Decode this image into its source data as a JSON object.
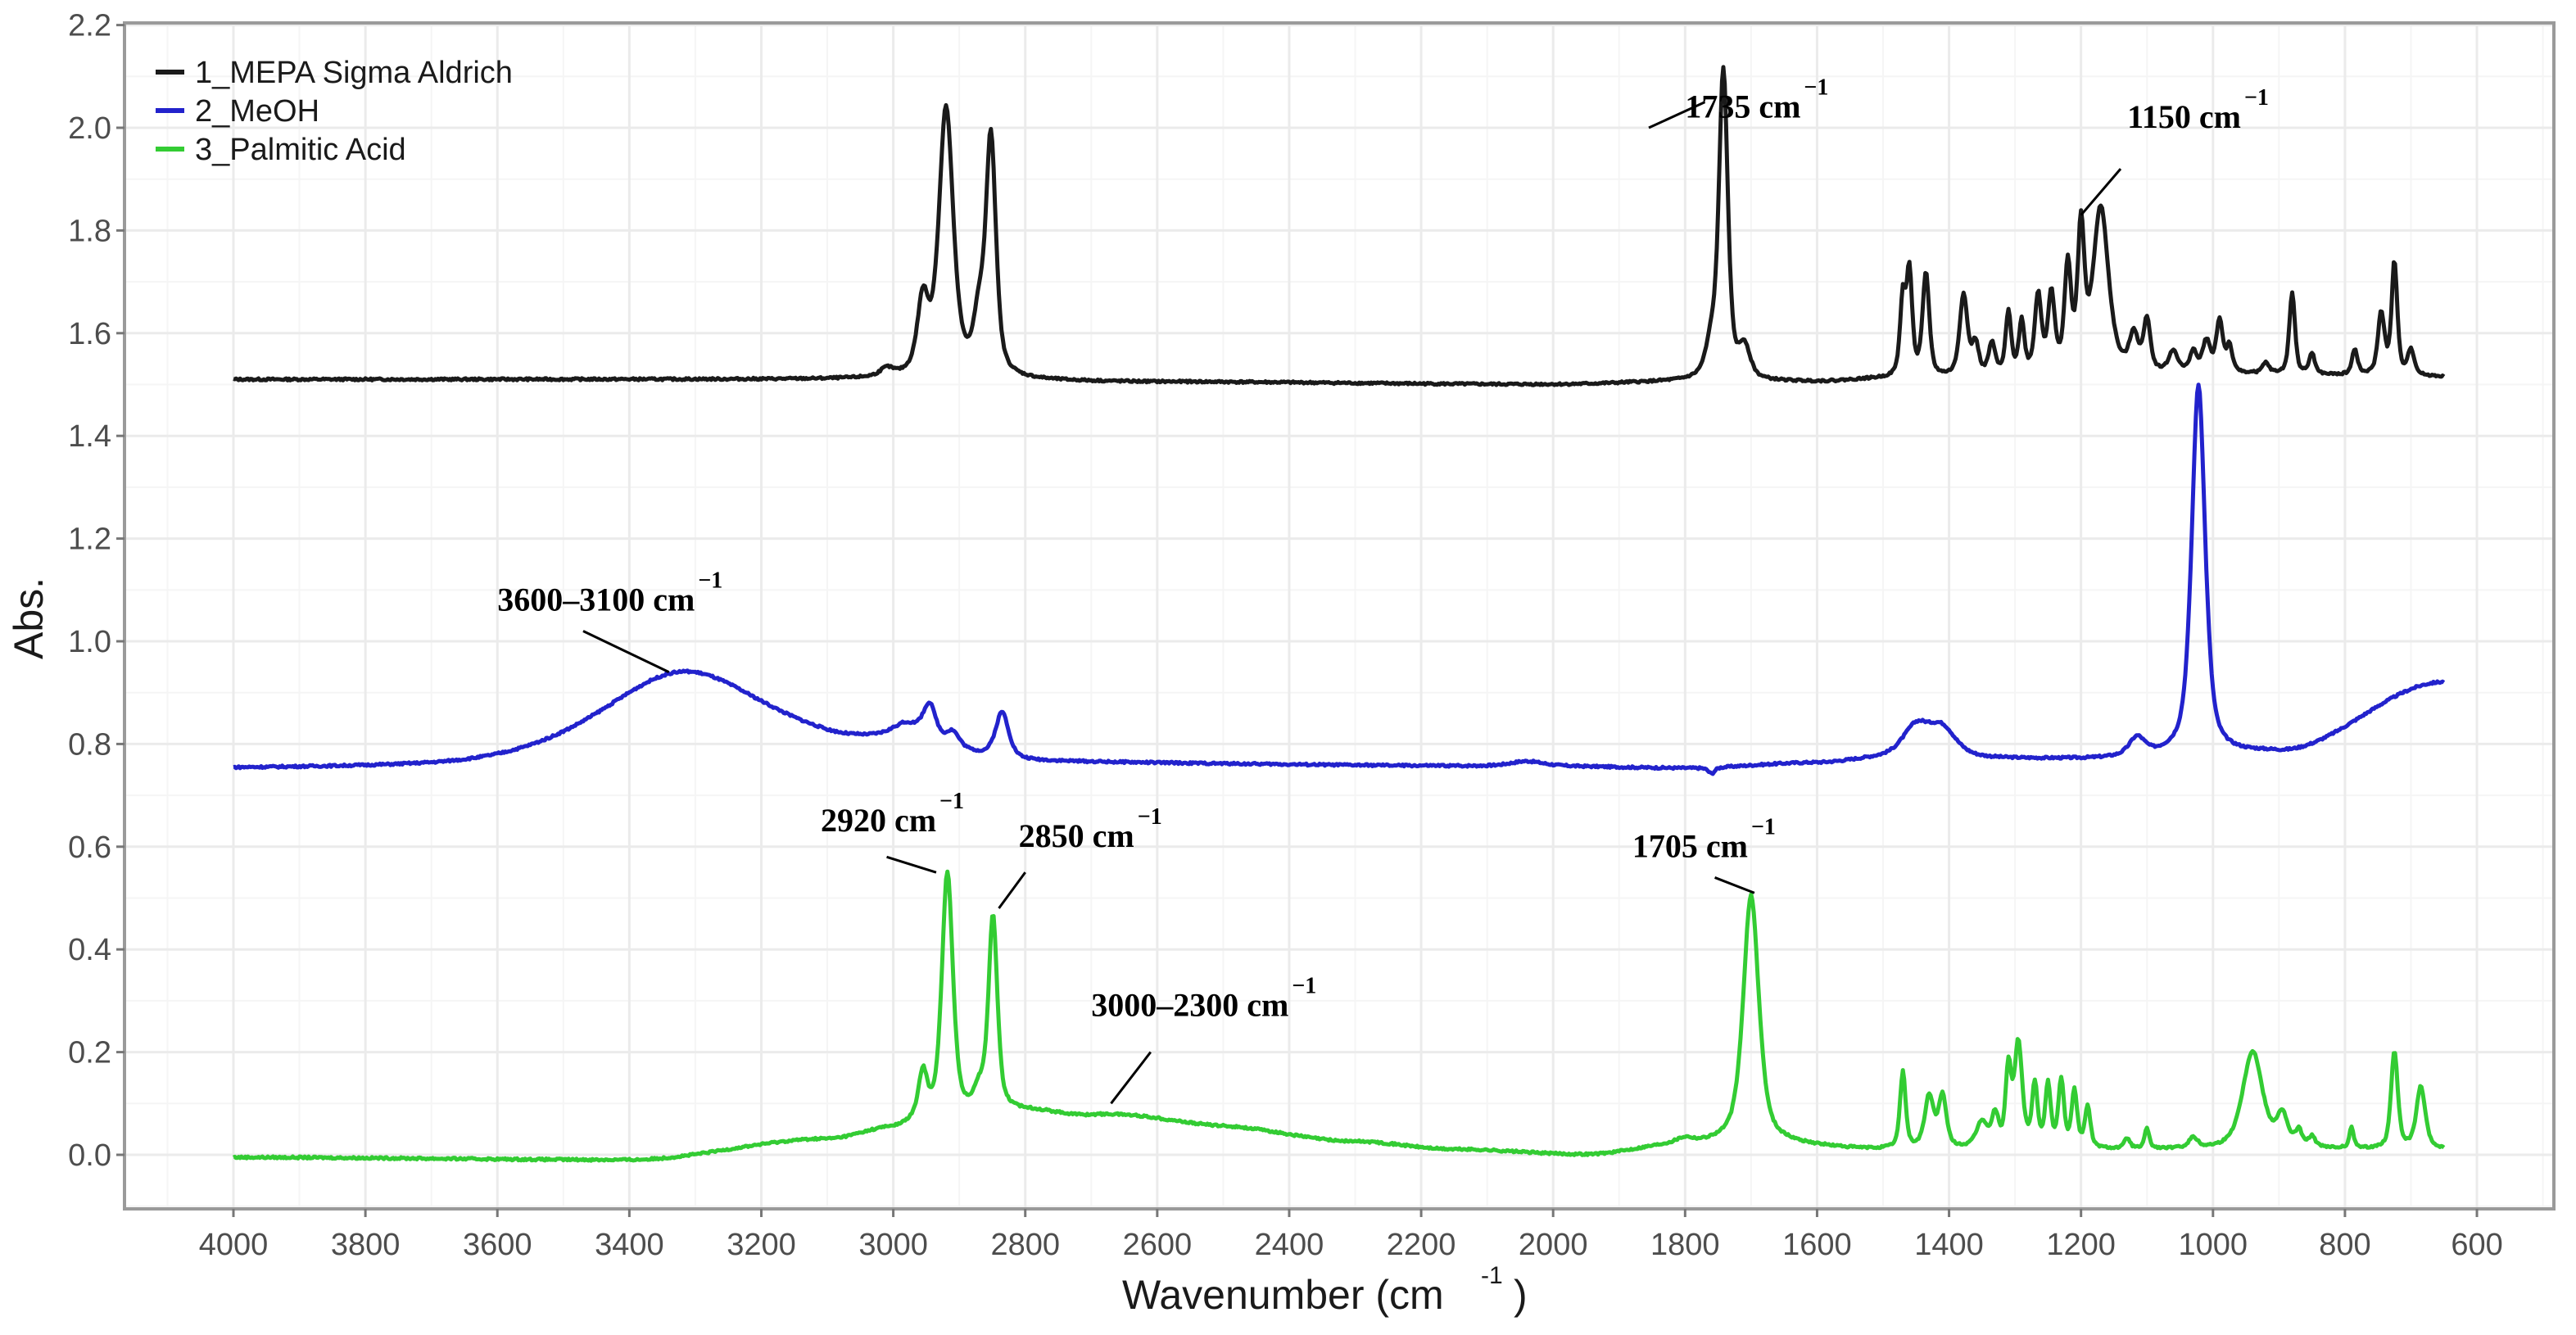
{
  "chart_data": {
    "type": "line",
    "title": "",
    "xlabel": "Wavenumber (cm⁻¹)",
    "xlabel_main": "Wavenumber (cm",
    "xlabel_sup": "-1",
    "xlabel_close": ")",
    "ylabel": "Abs.",
    "xlim": [
      4000,
      600
    ],
    "x_reversed": true,
    "ylim": [
      -0.1,
      2.2
    ],
    "x_ticks": [
      4000,
      3800,
      3600,
      3400,
      3200,
      3000,
      2800,
      2600,
      2400,
      2200,
      2000,
      1800,
      1600,
      1400,
      1200,
      1000,
      800,
      600
    ],
    "y_ticks": [
      "0.0",
      "0.2",
      "0.4",
      "0.6",
      "0.8",
      "1.0",
      "1.2",
      "1.4",
      "1.6",
      "1.8",
      "2.0",
      "2.2"
    ],
    "grid": true,
    "legend_position": "top-left",
    "x_range_data": [
      4000,
      650
    ],
    "series": [
      {
        "name": "1_MEPA Sigma Aldrich",
        "color": "#1a1a1a",
        "baseline": [
          [
            4000,
            1.51
          ],
          [
            3000,
            1.51
          ],
          [
            2600,
            1.505
          ],
          [
            2000,
            1.5
          ],
          [
            1800,
            1.505
          ],
          [
            1600,
            1.505
          ],
          [
            1500,
            1.51
          ],
          [
            1000,
            1.52
          ],
          [
            650,
            1.515
          ]
        ],
        "peaks": [
          [
            3010,
            0.015,
            12
          ],
          [
            2955,
            0.14,
            10
          ],
          [
            2920,
            0.52,
            13
          ],
          [
            2870,
            0.1,
            10
          ],
          [
            2852,
            0.46,
            9
          ],
          [
            1760,
            0.06,
            10
          ],
          [
            1742,
            0.6,
            8
          ],
          [
            1710,
            0.06,
            10
          ],
          [
            1470,
            0.15,
            5
          ],
          [
            1460,
            0.2,
            5
          ],
          [
            1435,
            0.2,
            6
          ],
          [
            1378,
            0.16,
            7
          ],
          [
            1360,
            0.06,
            6
          ],
          [
            1335,
            0.06,
            6
          ],
          [
            1310,
            0.12,
            5
          ],
          [
            1290,
            0.1,
            5
          ],
          [
            1265,
            0.15,
            6
          ],
          [
            1245,
            0.15,
            6
          ],
          [
            1220,
            0.2,
            6
          ],
          [
            1200,
            0.27,
            6
          ],
          [
            1170,
            0.32,
            14
          ],
          [
            1120,
            0.07,
            8
          ],
          [
            1100,
            0.1,
            6
          ],
          [
            1060,
            0.04,
            8
          ],
          [
            1030,
            0.04,
            6
          ],
          [
            1010,
            0.06,
            7
          ],
          [
            990,
            0.1,
            6
          ],
          [
            975,
            0.05,
            5
          ],
          [
            920,
            0.02,
            6
          ],
          [
            880,
            0.16,
            5
          ],
          [
            850,
            0.04,
            5
          ],
          [
            785,
            0.05,
            5
          ],
          [
            745,
            0.12,
            6
          ],
          [
            725,
            0.22,
            5
          ],
          [
            700,
            0.05,
            6
          ]
        ],
        "key_values": [
          {
            "x": 2920,
            "y": 2.03
          },
          {
            "x": 2852,
            "y": 1.97
          },
          {
            "x": 1742,
            "y": 2.1
          },
          {
            "x": 1170,
            "y": 1.84
          },
          {
            "x": 725,
            "y": 1.75
          }
        ]
      },
      {
        "name": "2_MeOH",
        "color": "#2222cc",
        "baseline": [
          [
            4000,
            0.75
          ],
          [
            3700,
            0.75
          ],
          [
            3100,
            0.78
          ],
          [
            3000,
            0.79
          ],
          [
            2800,
            0.76
          ],
          [
            2000,
            0.755
          ],
          [
            1800,
            0.752
          ],
          [
            1600,
            0.762
          ],
          [
            1500,
            0.77
          ],
          [
            1200,
            0.77
          ],
          [
            1000,
            0.78
          ],
          [
            900,
            0.785
          ],
          [
            650,
            0.92
          ]
        ],
        "peaks": [
          [
            3320,
            0.17,
            150
          ],
          [
            2980,
            0.03,
            25
          ],
          [
            2945,
            0.07,
            12
          ],
          [
            2910,
            0.03,
            12
          ],
          [
            2835,
            0.09,
            12
          ],
          [
            2040,
            0.01,
            30
          ],
          [
            1760,
            -0.012,
            6
          ],
          [
            1450,
            0.06,
            25
          ],
          [
            1410,
            0.055,
            25
          ],
          [
            1115,
            0.035,
            14
          ],
          [
            1022,
            0.72,
            12
          ]
        ],
        "key_values": [
          {
            "x": 3320,
            "y": 0.92
          },
          {
            "x": 2945,
            "y": 0.86
          },
          {
            "x": 2835,
            "y": 0.86
          },
          {
            "x": 1450,
            "y": 0.83
          },
          {
            "x": 1022,
            "y": 1.49
          },
          {
            "x": 650,
            "y": 0.92
          }
        ]
      },
      {
        "name": "3_Palmitic Acid",
        "color": "#33cc33",
        "baseline": [
          [
            4000,
            -0.005
          ],
          [
            3400,
            -0.01
          ],
          [
            3100,
            0.03
          ],
          [
            3000,
            0.05
          ],
          [
            2960,
            0.06
          ],
          [
            2800,
            0.08
          ],
          [
            2700,
            0.065
          ],
          [
            2500,
            0.05
          ],
          [
            2300,
            0.025
          ],
          [
            2150,
            0.01
          ],
          [
            1950,
            0.0
          ],
          [
            1800,
            0.02
          ],
          [
            1720,
            0.025
          ],
          [
            1500,
            0.01
          ],
          [
            1000,
            0.01
          ],
          [
            650,
            0.01
          ]
        ],
        "peaks": [
          [
            2955,
            0.09,
            8
          ],
          [
            2918,
            0.48,
            10
          ],
          [
            2870,
            0.04,
            10
          ],
          [
            2849,
            0.38,
            8
          ],
          [
            2640,
            0.015,
            120
          ],
          [
            1800,
            0.01,
            15
          ],
          [
            1700,
            0.48,
            14
          ],
          [
            1470,
            0.15,
            5
          ],
          [
            1430,
            0.1,
            8
          ],
          [
            1410,
            0.1,
            7
          ],
          [
            1350,
            0.05,
            10
          ],
          [
            1330,
            0.06,
            6
          ],
          [
            1310,
            0.15,
            5
          ],
          [
            1295,
            0.2,
            7
          ],
          [
            1270,
            0.12,
            5
          ],
          [
            1250,
            0.12,
            5
          ],
          [
            1230,
            0.13,
            5
          ],
          [
            1210,
            0.11,
            5
          ],
          [
            1190,
            0.08,
            5
          ],
          [
            1130,
            0.02,
            5
          ],
          [
            1100,
            0.04,
            4
          ],
          [
            1030,
            0.02,
            8
          ],
          [
            940,
            0.19,
            18
          ],
          [
            895,
            0.06,
            10
          ],
          [
            870,
            0.03,
            6
          ],
          [
            850,
            0.02,
            6
          ],
          [
            790,
            0.04,
            4
          ],
          [
            725,
            0.19,
            6
          ],
          [
            685,
            0.12,
            8
          ]
        ],
        "key_values": [
          {
            "x": 2918,
            "y": 0.56
          },
          {
            "x": 2849,
            "y": 0.47
          },
          {
            "x": 2640,
            "y": 0.07
          },
          {
            "x": 1700,
            "y": 0.51
          },
          {
            "x": 1295,
            "y": 0.25
          },
          {
            "x": 940,
            "y": 0.21
          },
          {
            "x": 725,
            "y": 0.2
          }
        ]
      }
    ],
    "annotations": [
      {
        "text": "1735 cm",
        "sup": "−1",
        "x": 1800,
        "y": 2.02,
        "line": [
          [
            1855,
            2.0
          ],
          [
            1770,
            2.05
          ]
        ],
        "series": "1_MEPA Sigma Aldrich"
      },
      {
        "text": "1150 cm",
        "sup": "−1",
        "x": 1130,
        "y": 2.0,
        "line": [
          [
            1140,
            1.92
          ],
          [
            1200,
            1.83
          ]
        ],
        "series": "1_MEPA Sigma Aldrich"
      },
      {
        "text": "3600–3100 cm",
        "sup": "−1",
        "x": 3600,
        "y": 1.06,
        "line": [
          [
            3470,
            1.02
          ],
          [
            3340,
            0.94
          ]
        ],
        "series": "2_MeOH"
      },
      {
        "text": "2920 cm",
        "sup": "−1",
        "x": 3110,
        "y": 0.63,
        "line": [
          [
            3010,
            0.58
          ],
          [
            2935,
            0.55
          ]
        ],
        "series": "3_Palmitic Acid"
      },
      {
        "text": "2850 cm",
        "sup": "−1",
        "x": 2810,
        "y": 0.6,
        "line": [
          [
            2800,
            0.55
          ],
          [
            2840,
            0.48
          ]
        ],
        "series": "3_Palmitic Acid"
      },
      {
        "text": "3000–2300 cm",
        "sup": "−1",
        "x": 2700,
        "y": 0.27,
        "line": [
          [
            2610,
            0.2
          ],
          [
            2670,
            0.1
          ]
        ],
        "series": "3_Palmitic Acid"
      },
      {
        "text": "1705 cm",
        "sup": "−1",
        "x": 1880,
        "y": 0.58,
        "line": [
          [
            1755,
            0.54
          ],
          [
            1695,
            0.51
          ]
        ],
        "series": "3_Palmitic Acid"
      }
    ]
  },
  "legend": {
    "items": [
      {
        "label": "1_MEPA Sigma Aldrich",
        "color": "#1a1a1a"
      },
      {
        "label": "2_MeOH",
        "color": "#2222cc"
      },
      {
        "label": "3_Palmitic Acid",
        "color": "#33cc33"
      }
    ]
  }
}
